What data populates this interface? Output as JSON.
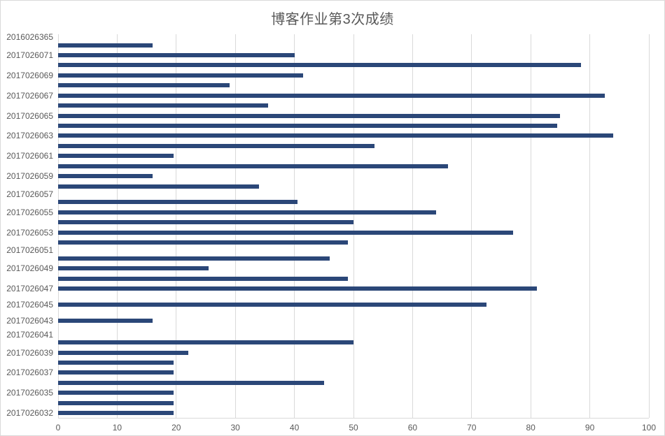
{
  "chart_data": {
    "type": "bar",
    "orientation": "horizontal",
    "title": "博客作业第3次成绩",
    "order": "top-to-bottom as displayed; unlabeled rows are unnamed categories between labeled ones",
    "categories": [
      "2016026365",
      "",
      "2017026071",
      "",
      "2017026069",
      "",
      "2017026067",
      "",
      "2017026065",
      "",
      "2017026063",
      "",
      "2017026061",
      "",
      "2017026059",
      "",
      "2017026057",
      "",
      "2017026055",
      "",
      "2017026053",
      "",
      "2017026051",
      "",
      "2017026049",
      "",
      "2017026047",
      "",
      "2017026045",
      "",
      "2017026043",
      "",
      "2017026041",
      "",
      "2017026039",
      "",
      "2017026037",
      "",
      "2017026035",
      "",
      "2017026032"
    ],
    "values": [
      0,
      16,
      40,
      88.5,
      41.5,
      29,
      92.5,
      35.5,
      85,
      84.5,
      94,
      53.5,
      19.5,
      66,
      16,
      34,
      0,
      40.5,
      64,
      50,
      77,
      49,
      0,
      46,
      25.5,
      49,
      81,
      0,
      72.5,
      0,
      16,
      0,
      0,
      50,
      22,
      19.5,
      19.5,
      45,
      19.5,
      19.5,
      19.5
    ],
    "xlabel": "",
    "ylabel": "",
    "xlim": [
      0,
      100
    ],
    "x_ticks": [
      0,
      10,
      20,
      30,
      40,
      50,
      60,
      70,
      80,
      90,
      100
    ],
    "x_tick_labels": [
      "0",
      "10",
      "20",
      "30",
      "40",
      "50",
      "60",
      "70",
      "80",
      "90",
      "100"
    ],
    "grid": "vertical gridlines on, horizontal off",
    "legend": "none",
    "colors": {
      "bar": "#2b4778",
      "gridline": "#d9d9d9",
      "axis_line": "#d9d9d9",
      "text": "#595959",
      "background": "#ffffff",
      "chart_border": "#d9d9d9"
    }
  }
}
